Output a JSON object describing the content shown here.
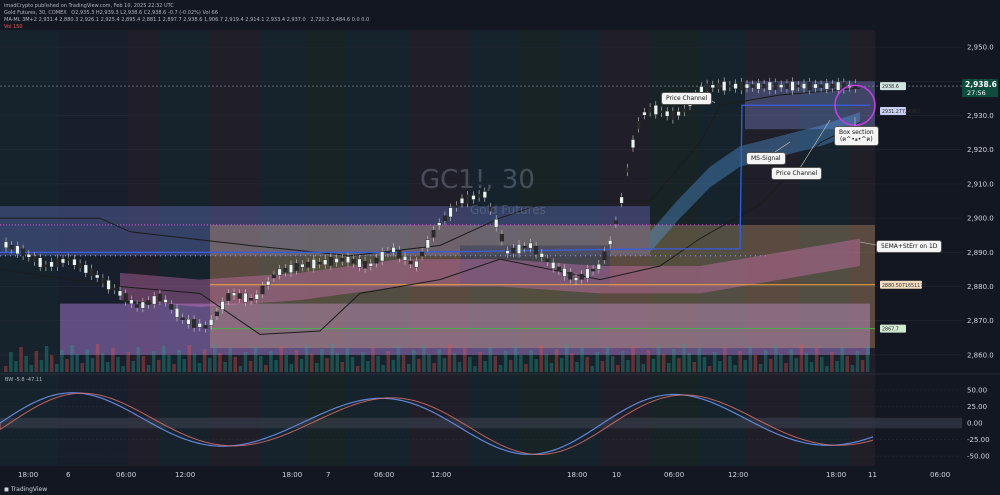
{
  "publisher_line": "imadCrypto published on TradingView.com, Feb 10, 2025 22:32 UTC",
  "legend": {
    "symbol_line": "Gold Futures, 30, COMEX",
    "symbol_values": "O2,935.3  H2,939.3  L2,938.6  C2,938.6  -0.7 (-0.02%)  Vol 66",
    "ma_line": "MA-ML 3M+2  2,931.4  2,880.3  2,926.1  2,925.4  2,895.4  2,881.1  2,897.7  2,938.6  1,906.7  2,919.4  2,914.1  2,933.4  2,937.0",
    "ma_line2": "2,720.2  3,484.6  0.0  0.0",
    "vol_line": "Vol  150"
  },
  "watermark": {
    "symbol": "GC1!, 30",
    "name": "Gold Futures"
  },
  "price_axis": [
    "2,950.0",
    "2,940.0",
    "2,930.0",
    "2,920.0",
    "2,910.0",
    "2,900.0",
    "2,890.0",
    "2,880.0",
    "2,870.0",
    "2,860.0"
  ],
  "current_price": {
    "price": "2,938.6",
    "countdown": "27:56"
  },
  "price_marks": [
    "2938.6",
    "2931.27724262",
    "2880.5071651175",
    "2867.7"
  ],
  "annotations": {
    "price_channel_top": "Price Channel",
    "ms_signal": "MS-Signal",
    "price_channel_bottom": "Price Channel",
    "box_section": "Box section",
    "box_section_sub": "(ฅ^•ﻌ•^ฅ)",
    "sema": "5EMA+StErr on 1D"
  },
  "oscillator": {
    "title": "BW  -5.8  -47.11",
    "axis": [
      "50.00",
      "25.00",
      "0.00",
      "-25.00",
      "-50.00"
    ]
  },
  "time_axis": [
    "18:00",
    "6",
    "06:00",
    "12:00",
    "18:00",
    "7",
    "06:00",
    "12:00",
    "18:00",
    "10",
    "06:00",
    "12:00",
    "18:00",
    "11",
    "06:00"
  ],
  "footer": "TradingView",
  "chart_data": {
    "type": "line",
    "title": "GC1!, 30",
    "ylim": [
      2855,
      2955
    ],
    "x": [
      0,
      5,
      10,
      15,
      20,
      25,
      30,
      35,
      40,
      45,
      50,
      55,
      60,
      65,
      70,
      75,
      80,
      85,
      90,
      95,
      100,
      105,
      110,
      115,
      120,
      125,
      130
    ],
    "series": [
      {
        "name": "",
        "values": [
          2893,
          2890,
          2886,
          2888,
          2884,
          2879,
          2874,
          2877,
          2870,
          2868,
          2878,
          2876,
          2884,
          2886,
          2887,
          2888,
          2886,
          2891,
          2886,
          2898,
          2905,
          2907,
          2890,
          2892,
          2886,
          2882,
          2886
        ]
      },
      {
        "name": "",
        "values": [
          2886,
          2893,
          2904,
          2920,
          2930,
          2932,
          2931,
          2930,
          2931,
          2935,
          2938,
          2938.6,
          2938.6,
          2938.6,
          2938.6,
          2938.6,
          2938.6,
          2938.6,
          2938.6,
          2938.6,
          2938.6,
          2938.6,
          2938.6,
          2938.6,
          2938.6,
          2938.6,
          2938.6
        ]
      }
    ]
  }
}
